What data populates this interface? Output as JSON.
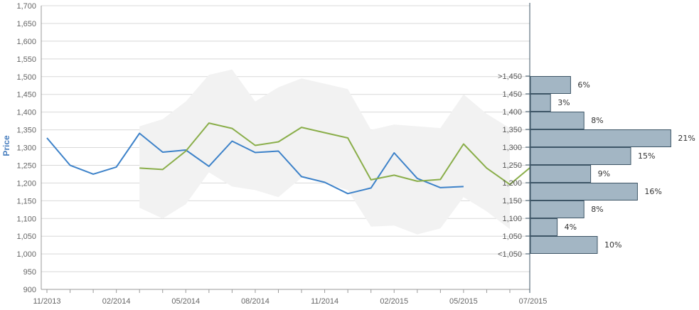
{
  "chart_data": {
    "type": "line",
    "ylabel": "Price",
    "xlabel": "",
    "ylim": [
      900,
      1700
    ],
    "y_ticks": [
      "900",
      "950",
      "1,000",
      "1,050",
      "1,100",
      "1,150",
      "1,200",
      "1,250",
      "1,300",
      "1,350",
      "1,400",
      "1,450",
      "1,500",
      "1,550",
      "1,600",
      "1,650",
      "1,700"
    ],
    "x_ticks": [
      "11/2013",
      "02/2014",
      "05/2014",
      "08/2014",
      "11/2014",
      "02/2015",
      "05/2015",
      "07/2015"
    ],
    "grid": true,
    "colors": {
      "series_blue": "#3d82c9",
      "series_green": "#8aae4a",
      "band": "#f2f2f2",
      "bars_fill": "#a3b6c4",
      "bars_stroke": "#3d5566",
      "axis_title": "#4a7fbf"
    },
    "series": [
      {
        "values": [
          {
            "x": "2013-11-01",
            "y": 1327
          },
          {
            "x": "2013-12-01",
            "y": 1250
          },
          {
            "x": "2014-01-01",
            "y": 1225
          },
          {
            "x": "2014-02-01",
            "y": 1245
          },
          {
            "x": "2014-03-01",
            "y": 1340
          },
          {
            "x": "2014-04-01",
            "y": 1287
          },
          {
            "x": "2014-05-01",
            "y": 1293
          },
          {
            "x": "2014-06-01",
            "y": 1247
          },
          {
            "x": "2014-07-01",
            "y": 1318
          },
          {
            "x": "2014-08-01",
            "y": 1286
          },
          {
            "x": "2014-09-01",
            "y": 1290
          },
          {
            "x": "2014-10-01",
            "y": 1218
          },
          {
            "x": "2014-11-01",
            "y": 1202
          },
          {
            "x": "2014-12-01",
            "y": 1170
          },
          {
            "x": "2015-01-01",
            "y": 1186
          },
          {
            "x": "2015-02-01",
            "y": 1285
          },
          {
            "x": "2015-03-01",
            "y": 1213
          },
          {
            "x": "2015-04-01",
            "y": 1187
          },
          {
            "x": "2015-05-01",
            "y": 1190
          }
        ]
      },
      {
        "values": [
          {
            "x": "2014-03-01",
            "y": 1242
          },
          {
            "x": "2014-04-01",
            "y": 1238
          },
          {
            "x": "2014-05-01",
            "y": 1290
          },
          {
            "x": "2014-06-01",
            "y": 1369
          },
          {
            "x": "2014-07-01",
            "y": 1354
          },
          {
            "x": "2014-08-01",
            "y": 1306
          },
          {
            "x": "2014-09-01",
            "y": 1316
          },
          {
            "x": "2014-10-01",
            "y": 1357
          },
          {
            "x": "2014-11-01",
            "y": 1342
          },
          {
            "x": "2014-12-01",
            "y": 1327
          },
          {
            "x": "2015-01-01",
            "y": 1209
          },
          {
            "x": "2015-02-01",
            "y": 1222
          },
          {
            "x": "2015-03-01",
            "y": 1205
          },
          {
            "x": "2015-04-01",
            "y": 1210
          },
          {
            "x": "2015-05-01",
            "y": 1310
          },
          {
            "x": "2015-06-01",
            "y": 1242
          },
          {
            "x": "2015-07-01",
            "y": 1196
          },
          {
            "x": "2015-08-01",
            "y": 1250
          }
        ]
      }
    ],
    "range_band": [
      {
        "x": "2014-03-01",
        "high": 1360,
        "low": 1130
      },
      {
        "x": "2014-04-01",
        "high": 1380,
        "low": 1100
      },
      {
        "x": "2014-05-01",
        "high": 1430,
        "low": 1140
      },
      {
        "x": "2014-06-01",
        "high": 1505,
        "low": 1230
      },
      {
        "x": "2014-07-01",
        "high": 1520,
        "low": 1190
      },
      {
        "x": "2014-08-01",
        "high": 1430,
        "low": 1180
      },
      {
        "x": "2014-09-01",
        "high": 1470,
        "low": 1160
      },
      {
        "x": "2014-10-01",
        "high": 1495,
        "low": 1215
      },
      {
        "x": "2014-11-01",
        "high": 1480,
        "low": 1200
      },
      {
        "x": "2014-12-01",
        "high": 1465,
        "low": 1180
      },
      {
        "x": "2015-01-01",
        "high": 1350,
        "low": 1077
      },
      {
        "x": "2015-02-01",
        "high": 1365,
        "low": 1080
      },
      {
        "x": "2015-03-01",
        "high": 1360,
        "low": 1055
      },
      {
        "x": "2015-04-01",
        "high": 1355,
        "low": 1072
      },
      {
        "x": "2015-05-01",
        "high": 1450,
        "low": 1160
      },
      {
        "x": "2015-06-01",
        "high": 1395,
        "low": 1120
      },
      {
        "x": "2015-07-01",
        "high": 1355,
        "low": 1070
      }
    ],
    "distribution": [
      {
        "label": ">1,450",
        "value": 6,
        "pct": "6%"
      },
      {
        "label": "1,450",
        "value": 3,
        "pct": "3%"
      },
      {
        "label": "1,400",
        "value": 8,
        "pct": "8%"
      },
      {
        "label": "1,350",
        "value": 21,
        "pct": "21%"
      },
      {
        "label": "1,300",
        "value": 15,
        "pct": "15%"
      },
      {
        "label": "1,250",
        "value": 9,
        "pct": "9%"
      },
      {
        "label": "1,200",
        "value": 16,
        "pct": "16%"
      },
      {
        "label": "1,150",
        "value": 8,
        "pct": "8%"
      },
      {
        "label": "1,100",
        "value": 4,
        "pct": "4%"
      },
      {
        "label": "1,050",
        "value": 10,
        "pct": "10%"
      },
      {
        "label": "<1,050",
        "value": null,
        "pct": ""
      }
    ]
  }
}
